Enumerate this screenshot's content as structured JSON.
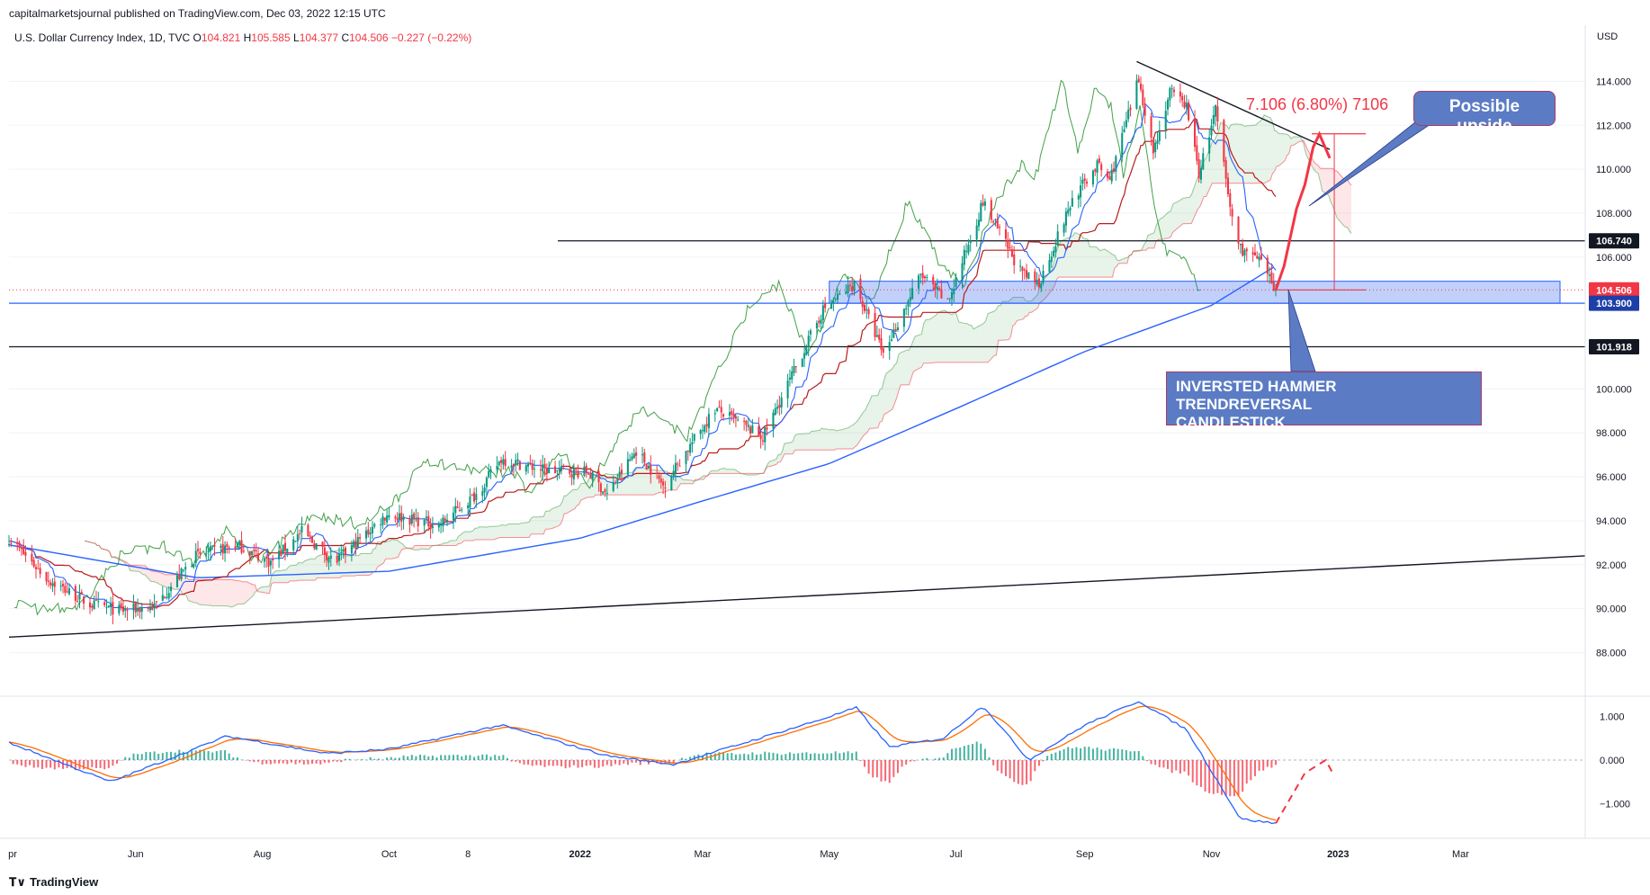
{
  "header": {
    "published": "capitalmarketsjournal published on TradingView.com, Dec 03, 2022 12:15 UTC"
  },
  "symbol_line": {
    "name": "U.S. Dollar Currency Index, 1D, TVC",
    "o_label": "O",
    "o_value": "104.821",
    "h_label": "H",
    "h_value": "105.585",
    "l_label": "L",
    "l_value": "104.377",
    "c_label": "C",
    "c_value": "104.506",
    "change": "−0.227 (−0.22%)"
  },
  "footer": {
    "brand": "TradingView"
  },
  "annotations": {
    "measure": "7.106 (6.80%) 7106",
    "possible_upside": "Possible upside",
    "hammer_line1": "INVERSTED HAMMER TRENDREVERSAL",
    "hammer_line2": "CANDLESTICK"
  },
  "colors": {
    "up": "#089981",
    "down": "#f23645",
    "sma200": "#2962ff",
    "kijun": "#b71c1c",
    "tenkan": "#2962ff",
    "chikou": "#43a047",
    "macd": "#2962ff",
    "signal": "#ff6d00",
    "zone": "#3f6cf0",
    "callout": "#5b7cc4"
  },
  "chart_data": [
    {
      "type": "candlestick",
      "title": "U.S. Dollar Currency Index, 1D, TVC",
      "ylabel": "USD",
      "ylim": [
        86.5,
        115.5
      ],
      "yticks": [
        "114.000",
        "112.000",
        "110.000",
        "108.000",
        "106.000",
        "100.000",
        "98.000",
        "96.000",
        "94.000",
        "92.000",
        "90.000",
        "88.000"
      ],
      "xticks": [
        "pr",
        "Jun",
        "Aug",
        "Oct",
        "8",
        "2022",
        "Mar",
        "May",
        "Jul",
        "Sep",
        "Nov",
        "2023",
        "Mar"
      ],
      "price_labels": [
        {
          "value": 106.74,
          "text": "106.740",
          "style": "black"
        },
        {
          "value": 104.506,
          "text": "104.506",
          "style": "red"
        },
        {
          "value": 103.9,
          "text": "103.900",
          "style": "blue"
        },
        {
          "value": 101.918,
          "text": "101.918",
          "style": "black"
        }
      ],
      "close_anchors": [
        [
          "2021-04-01",
          93.2
        ],
        [
          "2021-04-20",
          91.3
        ],
        [
          "2021-05-10",
          90.2
        ],
        [
          "2021-05-25",
          89.9
        ],
        [
          "2021-06-10",
          90.1
        ],
        [
          "2021-06-30",
          92.4
        ],
        [
          "2021-07-20",
          92.9
        ],
        [
          "2021-08-05",
          92.1
        ],
        [
          "2021-08-20",
          93.5
        ],
        [
          "2021-09-05",
          92.1
        ],
        [
          "2021-09-30",
          94.3
        ],
        [
          "2021-10-25",
          93.8
        ],
        [
          "2021-11-12",
          95.2
        ],
        [
          "2021-11-24",
          96.8
        ],
        [
          "2021-12-15",
          96.3
        ],
        [
          "2022-01-05",
          96.2
        ],
        [
          "2022-01-14",
          95.2
        ],
        [
          "2022-01-28",
          97.2
        ],
        [
          "2022-02-10",
          95.6
        ],
        [
          "2022-03-07",
          99.1
        ],
        [
          "2022-03-30",
          97.8
        ],
        [
          "2022-04-28",
          103.6
        ],
        [
          "2022-05-13",
          104.8
        ],
        [
          "2022-05-27",
          101.6
        ],
        [
          "2022-06-14",
          105.2
        ],
        [
          "2022-06-27",
          103.9
        ],
        [
          "2022-07-14",
          108.5
        ],
        [
          "2022-08-02",
          105.2
        ],
        [
          "2022-08-10",
          104.8
        ],
        [
          "2022-08-26",
          108.6
        ],
        [
          "2022-09-07",
          110.2
        ],
        [
          "2022-09-13",
          109.5
        ],
        [
          "2022-09-27",
          114.1
        ],
        [
          "2022-10-04",
          110.8
        ],
        [
          "2022-10-12",
          113.5
        ],
        [
          "2022-10-20",
          112.9
        ],
        [
          "2022-10-26",
          109.8
        ],
        [
          "2022-11-03",
          112.7
        ],
        [
          "2022-11-10",
          108.2
        ],
        [
          "2022-11-15",
          106.4
        ],
        [
          "2022-11-24",
          105.8
        ],
        [
          "2022-12-02",
          104.506
        ]
      ],
      "projection": [
        [
          "2022-12-02",
          104.506
        ],
        [
          "2022-12-06",
          105.6
        ],
        [
          "2022-12-12",
          108.2
        ],
        [
          "2022-12-16",
          109.3
        ],
        [
          "2022-12-20",
          111.0
        ],
        [
          "2022-12-23",
          111.6
        ],
        [
          "2022-12-28",
          110.5
        ]
      ],
      "sma200_anchors": [
        [
          "2021-04-01",
          92.9
        ],
        [
          "2021-07-01",
          91.4
        ],
        [
          "2021-10-01",
          91.7
        ],
        [
          "2022-01-01",
          93.2
        ],
        [
          "2022-03-01",
          94.9
        ],
        [
          "2022-05-01",
          96.6
        ],
        [
          "2022-07-01",
          99.1
        ],
        [
          "2022-09-01",
          101.7
        ],
        [
          "2022-11-01",
          103.8
        ],
        [
          "2022-12-02",
          105.6
        ]
      ],
      "horizontal_levels": [
        106.74,
        103.9,
        101.918
      ],
      "zone": {
        "from": "2022-05-01",
        "to": "2023-04-30",
        "low": 103.9,
        "high": 104.9
      },
      "support_trendline": [
        [
          "2021-04-01",
          88.7
        ],
        [
          "2023-04-30",
          92.4
        ]
      ],
      "resistance_trendline": [
        [
          "2022-09-26",
          114.9
        ],
        [
          "2022-12-28",
          110.9
        ]
      ],
      "measure": {
        "from": 104.506,
        "to": 111.612,
        "date_from": "2022-12-02",
        "date_to": "2022-12-28"
      }
    },
    {
      "type": "line",
      "title": "MACD",
      "ylim": [
        -1.8,
        1.3
      ],
      "yticks": [
        "1.000",
        "0.000",
        "−1.000"
      ],
      "macd_anchors": [
        [
          "2021-04-01",
          0.4
        ],
        [
          "2021-05-20",
          -0.5
        ],
        [
          "2021-07-15",
          0.55
        ],
        [
          "2021-09-01",
          0.15
        ],
        [
          "2021-10-01",
          0.25
        ],
        [
          "2021-11-24",
          0.8
        ],
        [
          "2022-01-14",
          0.1
        ],
        [
          "2022-02-15",
          -0.1
        ],
        [
          "2022-04-25",
          0.9
        ],
        [
          "2022-05-14",
          1.2
        ],
        [
          "2022-05-30",
          0.3
        ],
        [
          "2022-06-25",
          0.5
        ],
        [
          "2022-07-14",
          1.25
        ],
        [
          "2022-08-05",
          0.0
        ],
        [
          "2022-09-01",
          0.8
        ],
        [
          "2022-09-27",
          1.35
        ],
        [
          "2022-10-20",
          0.7
        ],
        [
          "2022-11-15",
          -1.35
        ],
        [
          "2022-12-02",
          -1.45
        ]
      ],
      "macd_projection": [
        [
          "2022-12-02",
          -1.45
        ],
        [
          "2022-12-16",
          -0.3
        ],
        [
          "2022-12-26",
          0.0
        ],
        [
          "2022-12-30",
          -0.35
        ]
      ]
    }
  ]
}
